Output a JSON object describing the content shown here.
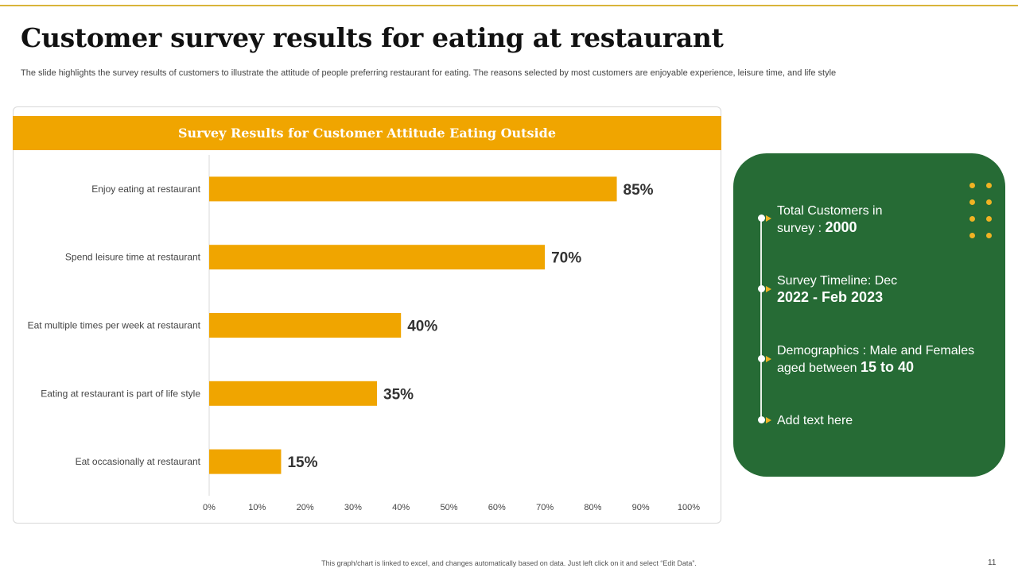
{
  "slide": {
    "title": "Customer survey results for eating at restaurant",
    "subtitle": "The slide highlights the survey results of customers to illustrate the attitude of people preferring restaurant for eating. The reasons selected by most customers are enjoyable experience, leisure time, and life style",
    "footer_note": "This graph/chart is linked to excel, and changes automatically based on data. Just left click on it and select “Edit Data”.",
    "page_number": "11"
  },
  "colors": {
    "accent": "#f0a500",
    "panel_green": "#266b35",
    "bullet_yellow": "#f0b323"
  },
  "chart_data": {
    "type": "bar",
    "orientation": "horizontal",
    "title": "Survey Results for Customer Attitude Eating Outside",
    "categories": [
      "Enjoy eating at restaurant",
      "Spend leisure time at restaurant",
      "Eat multiple times per week at restaurant",
      "Eating at restaurant is part of life style",
      "Eat occasionally at restaurant"
    ],
    "values": [
      85,
      70,
      40,
      35,
      15
    ],
    "value_labels": [
      "85%",
      "70%",
      "40%",
      "35%",
      "15%"
    ],
    "xlim": [
      0,
      100
    ],
    "x_ticks": [
      "0%",
      "10%",
      "20%",
      "30%",
      "40%",
      "50%",
      "60%",
      "70%",
      "80%",
      "90%",
      "100%"
    ],
    "xlabel": "",
    "ylabel": "",
    "grid": false,
    "legend": "none"
  },
  "info_panel": {
    "items": [
      {
        "text": "Total Customers in survey : ",
        "highlight": "2000"
      },
      {
        "text": "Survey Timeline: Dec",
        "highlight": "2022 - Feb 2023"
      },
      {
        "text": "Demographics : Male and Females aged between ",
        "highlight": "15 to 40"
      },
      {
        "text": "Add text here",
        "highlight": ""
      }
    ]
  }
}
